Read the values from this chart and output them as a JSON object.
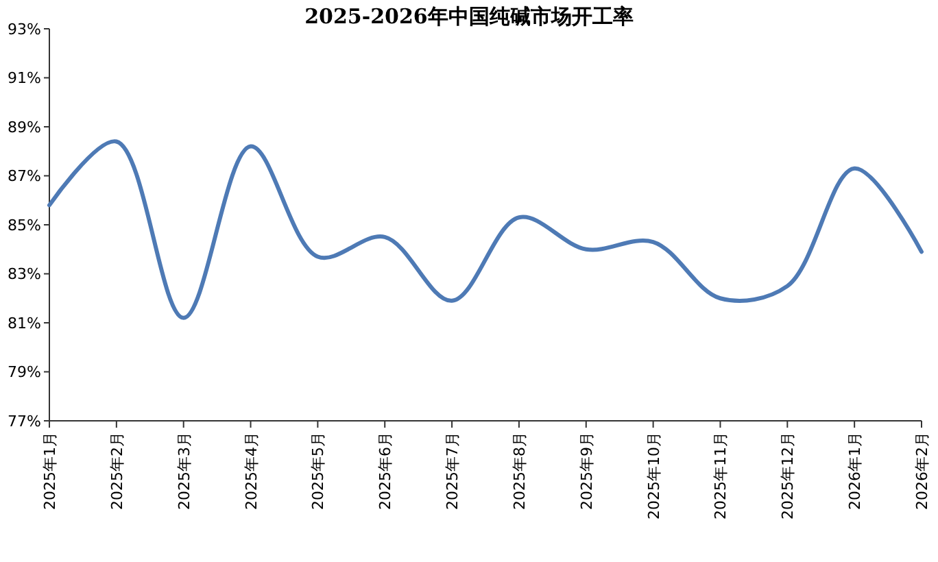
{
  "chart_data": {
    "type": "line",
    "title": "2025-2026年中国纯碱市场开工率",
    "categories": [
      "2025年1月",
      "2025年2月",
      "2025年3月",
      "2025年4月",
      "2025年5月",
      "2025年6月",
      "2025年7月",
      "2025年8月",
      "2025年9月",
      "2025年10月",
      "2025年11月",
      "2025年12月",
      "2026年1月",
      "2026年2月"
    ],
    "series": [
      {
        "color": "#4e7ab5",
        "values": [
          85.8,
          88.4,
          81.2,
          88.2,
          83.7,
          84.5,
          81.9,
          85.3,
          84.0,
          84.3,
          82.0,
          82.5,
          87.3,
          83.9
        ]
      }
    ],
    "ylim": [
      77,
      93
    ],
    "yticks": [
      {
        "value": 77,
        "label": "77%"
      },
      {
        "value": 79,
        "label": "79%"
      },
      {
        "value": 81,
        "label": "81%"
      },
      {
        "value": 83,
        "label": "83%"
      },
      {
        "value": 85,
        "label": "85%"
      },
      {
        "value": 87,
        "label": "87%"
      },
      {
        "value": 89,
        "label": "89%"
      },
      {
        "value": 91,
        "label": "91%"
      },
      {
        "value": 93,
        "label": "93%"
      }
    ],
    "marker": "none",
    "line_style": "solid"
  }
}
